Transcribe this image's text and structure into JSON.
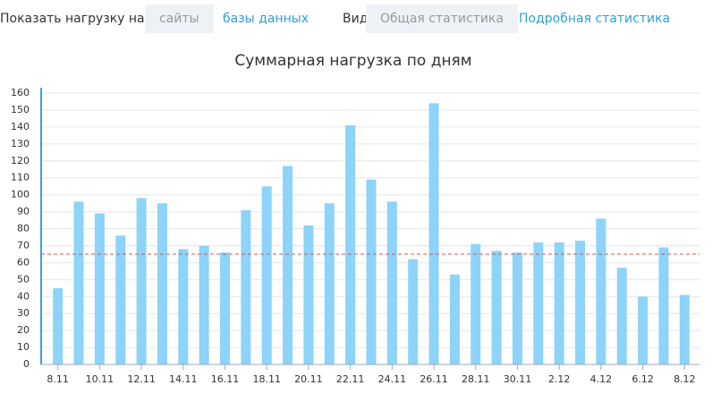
{
  "toolbar": {
    "show_label": "Показать нагрузку на:",
    "targets": [
      {
        "label": "сайты",
        "selected": true
      },
      {
        "label": "базы данных",
        "selected": false
      }
    ],
    "view_label": "Вид:",
    "views": [
      {
        "label": "Общая статистика",
        "selected": true
      },
      {
        "label": "Подробная статистика",
        "selected": false
      }
    ]
  },
  "chart_data": {
    "type": "bar",
    "title": "Суммарная нагрузка по дням",
    "categories": [
      "8.11",
      null,
      "10.11",
      null,
      "12.11",
      null,
      "14.11",
      null,
      "16.11",
      null,
      "18.11",
      null,
      "20.11",
      null,
      "22.11",
      null,
      "24.11",
      null,
      "26.11",
      null,
      "28.11",
      null,
      "30.11",
      null,
      "2.12",
      null,
      "4.12",
      null,
      "6.12",
      null,
      "8.12"
    ],
    "values": [
      45,
      96,
      89,
      76,
      98,
      95,
      68,
      70,
      66,
      91,
      105,
      117,
      82,
      95,
      141,
      109,
      96,
      62,
      154,
      53,
      71,
      67,
      66,
      72,
      72,
      73,
      86,
      57,
      40,
      69,
      41
    ],
    "color": "#8dd3fa",
    "reference_line": 65,
    "reference_color": "#d9534f",
    "ylim": [
      0,
      160
    ],
    "yticks": [
      0,
      10,
      20,
      30,
      40,
      50,
      60,
      70,
      80,
      90,
      100,
      110,
      120,
      130,
      140,
      150,
      160
    ],
    "grid": true
  }
}
